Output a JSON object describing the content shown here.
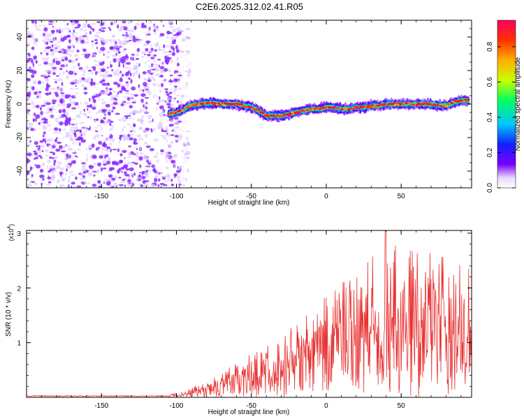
{
  "title": "C2E6.2025.312.02.41.R05",
  "chart_data": [
    {
      "type": "heatmap",
      "name": "spectrogram",
      "xlabel": "Height of straight line (km)",
      "ylabel": "Frequency (Hz)",
      "xlim": [
        -200,
        97
      ],
      "ylim": [
        -50,
        50
      ],
      "xticks": [
        -150,
        -100,
        -50,
        0,
        50
      ],
      "xtick_labels": [
        "-150",
        "-100",
        "-50",
        "0",
        "50"
      ],
      "yticks": [
        -40,
        -20,
        0,
        20,
        40
      ],
      "ytick_labels": [
        "-40",
        "-20",
        "0",
        "20",
        "40"
      ],
      "colorbar": {
        "label": "Normalized spectral amplitude",
        "range": [
          0,
          0.95
        ],
        "ticks": [
          0,
          0.2,
          0.4,
          0.6,
          0.8
        ],
        "tick_labels": [
          "0.0",
          "0.2",
          "0.4",
          "0.6",
          "0.8"
        ],
        "colormap": [
          "#ffffff",
          "#e8d8ff",
          "#7a00ff",
          "#1020ff",
          "#00c8ff",
          "#00ff60",
          "#c8ff00",
          "#ffb000",
          "#ff3000",
          "#ff0060"
        ]
      },
      "noise_region_x": [
        -200,
        -97
      ],
      "ridge": {
        "x": [
          -105,
          -100,
          -95,
          -90,
          -85,
          -80,
          -75,
          -70,
          -65,
          -60,
          -55,
          -50,
          -45,
          -40,
          -35,
          -30,
          -25,
          -20,
          -15,
          -10,
          -5,
          0,
          5,
          10,
          15,
          20,
          25,
          30,
          35,
          40,
          45,
          50,
          55,
          60,
          65,
          70,
          75,
          80,
          85,
          90,
          95
        ],
        "y": [
          -6,
          -5,
          -3,
          -1,
          0,
          0.5,
          0.5,
          0,
          0,
          0,
          -1,
          -2,
          -4,
          -7,
          -7,
          -7,
          -6,
          -5,
          -4,
          -3,
          -3,
          -2,
          -2,
          -3,
          -3,
          -2,
          -2,
          -1,
          -1,
          0,
          0,
          0,
          0,
          0,
          0,
          0,
          -1,
          -1,
          1,
          2,
          2
        ],
        "peak_amplitude": 0.95
      }
    },
    {
      "type": "line",
      "name": "snr",
      "xlabel": "Height of straight line (km)",
      "ylabel": "SNR (10 * v/v)",
      "yscale_label": "(x10",
      "yscale_exp": "4",
      "yscale_close": ")",
      "xlim": [
        -200,
        97
      ],
      "ylim": [
        0,
        3.05
      ],
      "xticks": [
        -150,
        -100,
        -50,
        0,
        50
      ],
      "xtick_labels": [
        "-150",
        "-100",
        "-50",
        "0",
        "50"
      ],
      "yticks": [
        1,
        2,
        3
      ],
      "ytick_labels": [
        "1",
        "2",
        "3"
      ],
      "color": "#e83030",
      "envelope": {
        "x": [
          -200,
          -105,
          -95,
          -85,
          -75,
          -65,
          -55,
          -45,
          -35,
          -25,
          -15,
          -5,
          5,
          15,
          25,
          35,
          45,
          55,
          65,
          75,
          85,
          95
        ],
        "y": [
          0.04,
          0.05,
          0.12,
          0.25,
          0.38,
          0.55,
          0.72,
          0.9,
          1.02,
          1.3,
          1.5,
          1.75,
          1.95,
          2.2,
          2.45,
          2.75,
          2.9,
          2.85,
          2.75,
          2.7,
          2.55,
          2.5
        ]
      }
    }
  ]
}
